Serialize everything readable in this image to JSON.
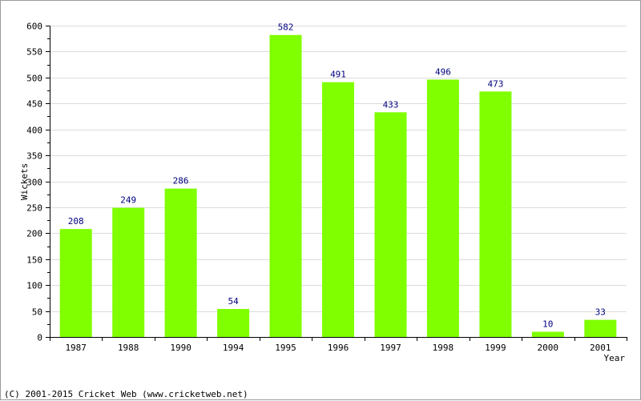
{
  "chart_data": {
    "type": "bar",
    "categories": [
      "1987",
      "1988",
      "1990",
      "1994",
      "1995",
      "1996",
      "1997",
      "1998",
      "1999",
      "2000",
      "2001"
    ],
    "values": [
      208,
      249,
      286,
      54,
      582,
      491,
      433,
      496,
      473,
      10,
      33
    ],
    "xlabel": "Year",
    "ylabel": "Wickets",
    "ylim": [
      0,
      600
    ],
    "yticks": [
      0,
      50,
      100,
      150,
      200,
      250,
      300,
      350,
      400,
      450,
      500,
      550,
      600
    ],
    "grid": true,
    "bar_color": "#80ff00",
    "data_label_color": "#000080"
  },
  "footer": {
    "copyright": "(C) 2001-2015 Cricket Web (www.cricketweb.net)"
  }
}
